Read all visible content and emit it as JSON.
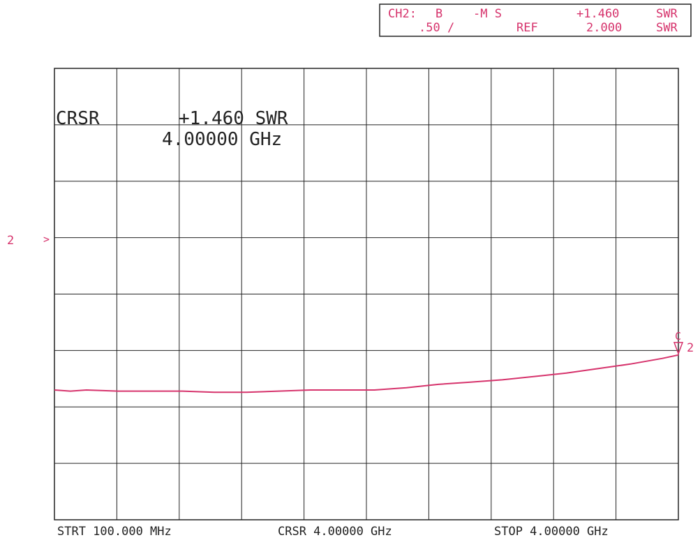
{
  "header": {
    "line1": {
      "channel": "CH2:",
      "input": "B",
      "meas": "-M S",
      "value": "+1.460",
      "unit": "SWR"
    },
    "line2": {
      "scale": ".50 /",
      "ref_label": "REF",
      "ref_value": "2.000",
      "unit": "SWR"
    }
  },
  "cursor_readout": {
    "label": "CRSR",
    "value": "+1.460 SWR",
    "freq": "4.00000 GHz"
  },
  "left_markers": {
    "channel": "2",
    "ref_arrow": ">"
  },
  "end_markers": {
    "cursor": "C",
    "channel": "2"
  },
  "footer": {
    "start": "STRT 100.000 MHz",
    "cursor": "CRSR 4.00000 GHz",
    "stop": "STOP 4.00000 GHz"
  },
  "colors": {
    "trace": "#d6336c",
    "grid": "#222222",
    "annotation": "#d6336c",
    "text": "#222222"
  },
  "chart_data": {
    "type": "line",
    "x_unit": "GHz",
    "y_unit": "SWR",
    "xlim": [
      0.1,
      4.0
    ],
    "ylim": [
      0.0,
      4.0
    ],
    "reference": 2.0,
    "scale_per_div": 0.5,
    "x_divisions": 10,
    "y_divisions": 8,
    "grid": true,
    "cursor": {
      "x": 4.0,
      "y": 1.46
    },
    "series": [
      {
        "x": [
          0.1,
          0.2,
          0.3,
          0.5,
          0.7,
          0.9,
          1.1,
          1.3,
          1.5,
          1.7,
          1.9,
          2.1,
          2.3,
          2.5,
          2.7,
          2.9,
          3.1,
          3.3,
          3.5,
          3.7,
          3.9,
          4.0
        ],
        "y": [
          1.15,
          1.14,
          1.15,
          1.14,
          1.14,
          1.14,
          1.13,
          1.13,
          1.14,
          1.15,
          1.15,
          1.15,
          1.17,
          1.2,
          1.22,
          1.24,
          1.27,
          1.3,
          1.34,
          1.38,
          1.43,
          1.46
        ]
      }
    ]
  }
}
